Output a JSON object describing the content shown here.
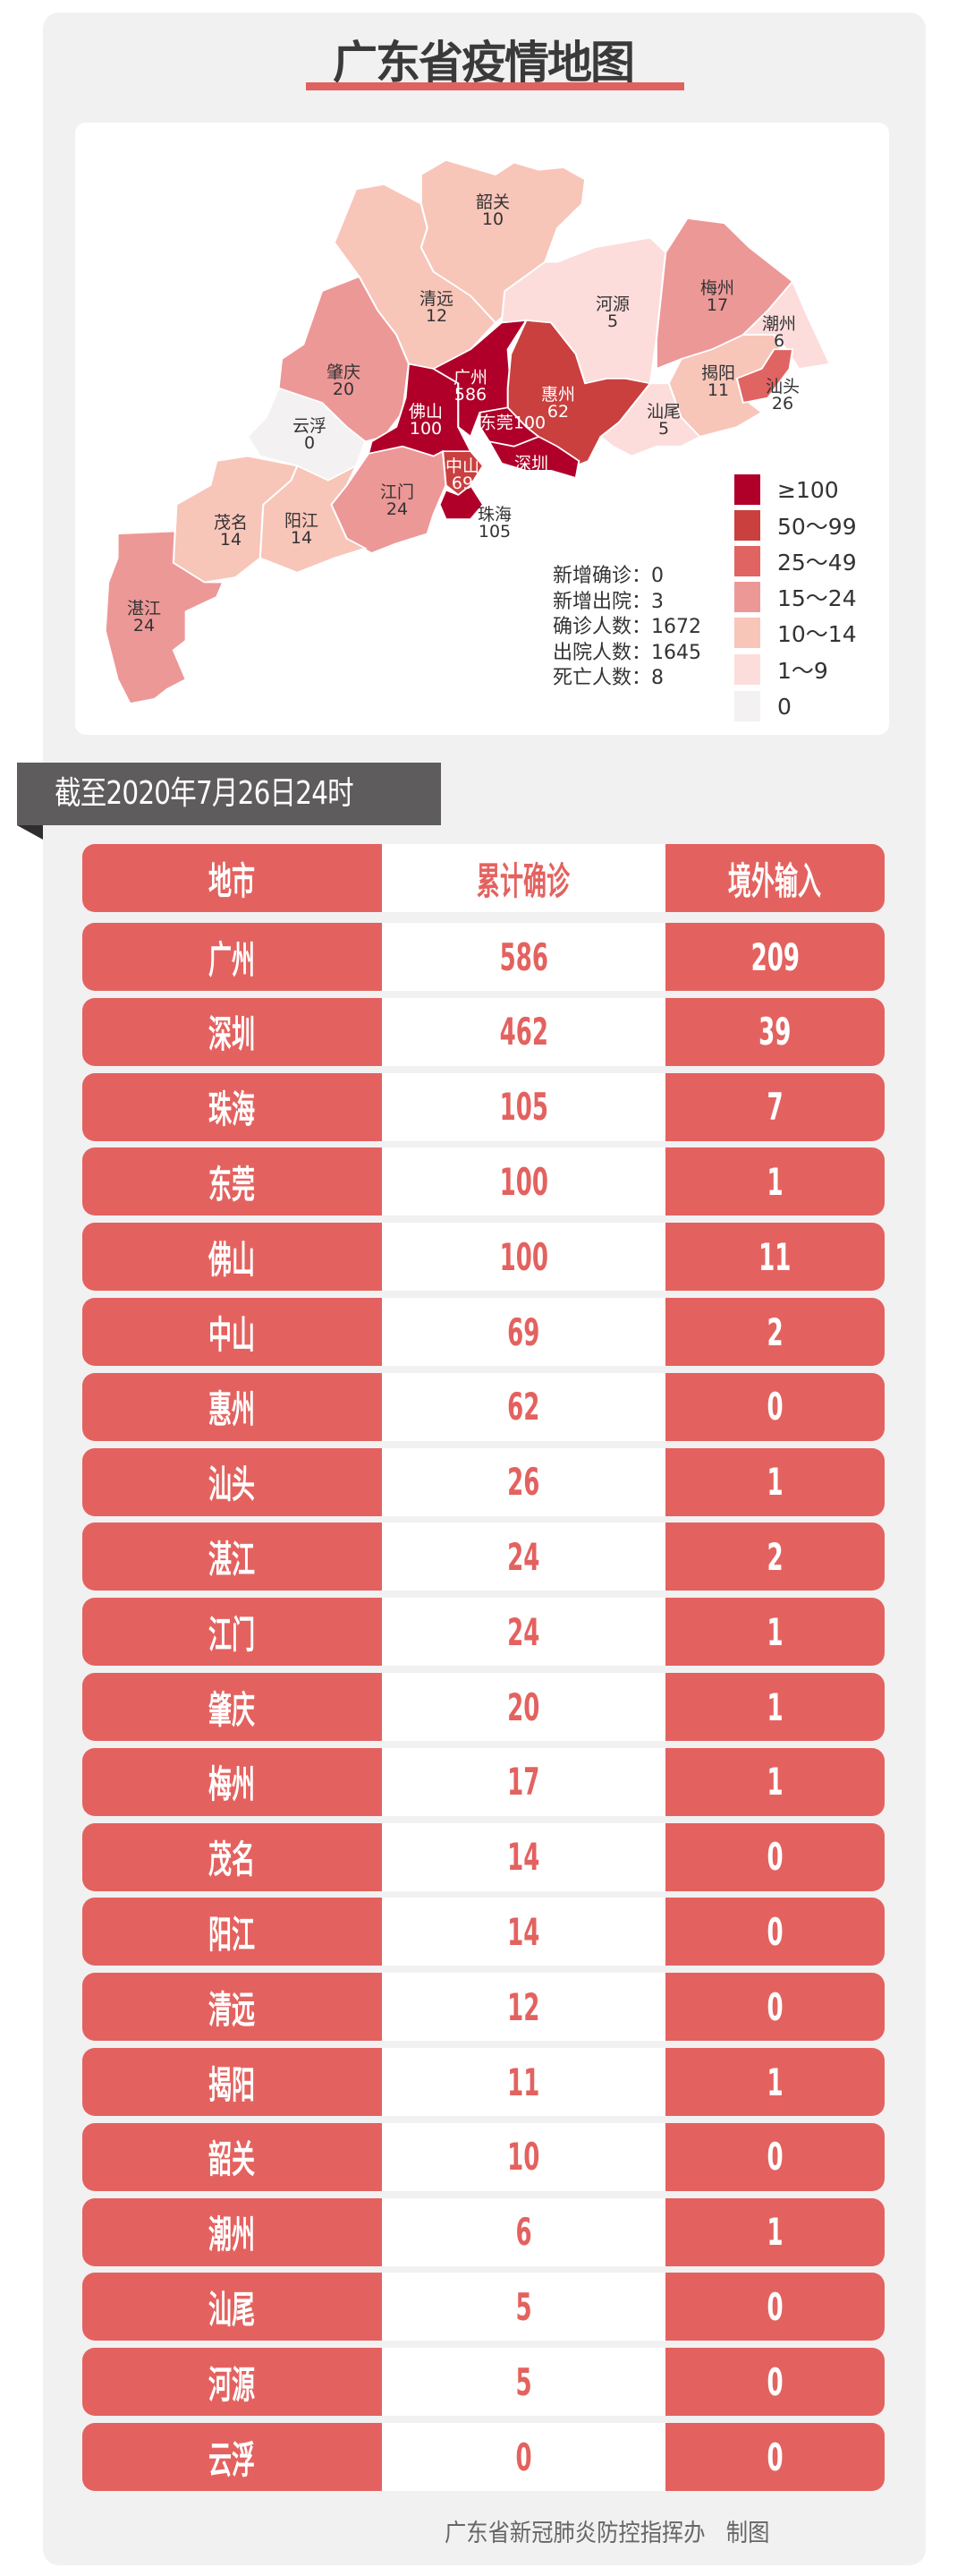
{
  "title": "广东省疫情地图",
  "map": {
    "regions": [
      {
        "id": "shaoguan",
        "name": "韶关",
        "value": "10",
        "level": 4
      },
      {
        "id": "qingyuan",
        "name": "清远",
        "value": "12",
        "level": 4
      },
      {
        "id": "zhaoqing",
        "name": "肇庆",
        "value": "20",
        "level": 3
      },
      {
        "id": "yunfu",
        "name": "云浮",
        "value": "0",
        "level": 6
      },
      {
        "id": "foshan",
        "name": "佛山",
        "value": "100",
        "level": 0
      },
      {
        "id": "guangzhou",
        "name": "广州",
        "value": "586",
        "level": 0
      },
      {
        "id": "huizhou",
        "name": "惠州",
        "value": "62",
        "level": 1
      },
      {
        "id": "dongguan",
        "name": "东莞",
        "value": "100",
        "level": 0
      },
      {
        "id": "shenzhen",
        "name": "深圳",
        "value": "462",
        "level": 0
      },
      {
        "id": "zhongshan",
        "name": "中山",
        "value": "69",
        "level": 1
      },
      {
        "id": "zhuhai",
        "name": "珠海",
        "value": "105",
        "level": 0
      },
      {
        "id": "jiangmen",
        "name": "江门",
        "value": "24",
        "level": 3
      },
      {
        "id": "yangjiang",
        "name": "阳江",
        "value": "14",
        "level": 4
      },
      {
        "id": "maoming",
        "name": "茂名",
        "value": "14",
        "level": 4
      },
      {
        "id": "zhanjiang",
        "name": "湛江",
        "value": "24",
        "level": 3
      },
      {
        "id": "heyuan",
        "name": "河源",
        "value": "5",
        "level": 5
      },
      {
        "id": "meizhou",
        "name": "梅州",
        "value": "17",
        "level": 3
      },
      {
        "id": "chaozhou",
        "name": "潮州",
        "value": "6",
        "level": 5
      },
      {
        "id": "jieyang",
        "name": "揭阳",
        "value": "11",
        "level": 4
      },
      {
        "id": "shantou",
        "name": "汕头",
        "value": "26",
        "level": 2
      },
      {
        "id": "shanwei",
        "name": "汕尾",
        "value": "5",
        "level": 5
      }
    ],
    "stats": [
      {
        "label": "新增确诊",
        "value": "0"
      },
      {
        "label": "新增出院",
        "value": "3"
      },
      {
        "label": "确诊人数",
        "value": "1672"
      },
      {
        "label": "出院人数",
        "value": "1645"
      },
      {
        "label": "死亡人数",
        "value": "8"
      }
    ],
    "legend": [
      {
        "label": "≥100",
        "color": "#b0002a"
      },
      {
        "label": "50～99",
        "color": "#c9403f"
      },
      {
        "label": "25～49",
        "color": "#e06462"
      },
      {
        "label": "15～24",
        "color": "#ec9897"
      },
      {
        "label": "10～14",
        "color": "#f8c5b9"
      },
      {
        "label": "1～9",
        "color": "#fcdddb"
      },
      {
        "label": "0",
        "color": "#f3f1f2"
      }
    ]
  },
  "as_of": "截至2020年7月26日24时",
  "table": {
    "headers": [
      "地市",
      "累计确诊",
      "境外输入"
    ],
    "rows": [
      [
        "广州",
        "586",
        "209"
      ],
      [
        "深圳",
        "462",
        "39"
      ],
      [
        "珠海",
        "105",
        "7"
      ],
      [
        "东莞",
        "100",
        "1"
      ],
      [
        "佛山",
        "100",
        "11"
      ],
      [
        "中山",
        "69",
        "2"
      ],
      [
        "惠州",
        "62",
        "0"
      ],
      [
        "汕头",
        "26",
        "1"
      ],
      [
        "湛江",
        "24",
        "2"
      ],
      [
        "江门",
        "24",
        "1"
      ],
      [
        "肇庆",
        "20",
        "1"
      ],
      [
        "梅州",
        "17",
        "1"
      ],
      [
        "茂名",
        "14",
        "0"
      ],
      [
        "阳江",
        "14",
        "0"
      ],
      [
        "清远",
        "12",
        "0"
      ],
      [
        "揭阳",
        "11",
        "1"
      ],
      [
        "韶关",
        "10",
        "0"
      ],
      [
        "潮州",
        "6",
        "1"
      ],
      [
        "汕尾",
        "5",
        "0"
      ],
      [
        "河源",
        "5",
        "0"
      ],
      [
        "云浮",
        "0",
        "0"
      ]
    ]
  },
  "footer": "广东省新冠肺炎防控指挥办   制图",
  "colors": {
    "accent": "#e3625f",
    "banner": "#5e5c5d"
  }
}
